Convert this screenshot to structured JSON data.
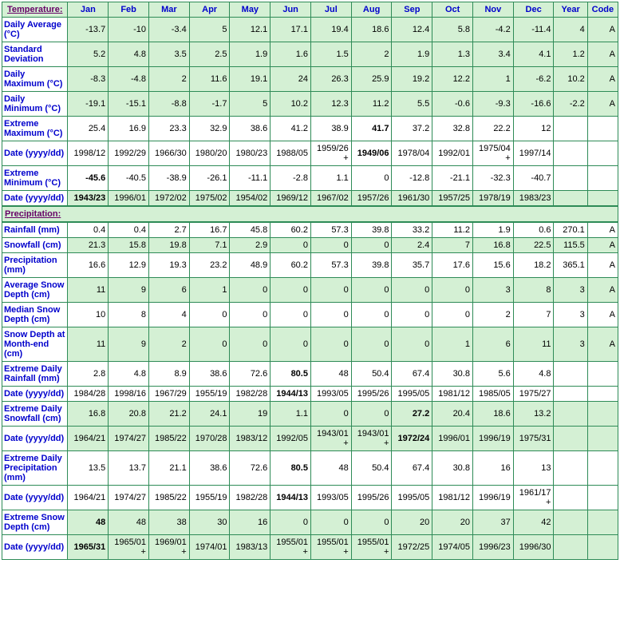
{
  "headers": [
    "Jan",
    "Feb",
    "Mar",
    "Apr",
    "May",
    "Jun",
    "Jul",
    "Aug",
    "Sep",
    "Oct",
    "Nov",
    "Dec",
    "Year",
    "Code"
  ],
  "sections": {
    "temperature": "Temperature:",
    "precipitation": "Precipitation:"
  },
  "rows": {
    "daily_avg": {
      "label": "Daily Average (°C)",
      "shaded": true,
      "bold": [],
      "v": [
        "-13.7",
        "-10",
        "-3.4",
        "5",
        "12.1",
        "17.1",
        "19.4",
        "18.6",
        "12.4",
        "5.8",
        "-4.2",
        "-11.4",
        "4",
        "A"
      ]
    },
    "std_dev": {
      "label": "Standard Deviation",
      "shaded": true,
      "bold": [],
      "v": [
        "5.2",
        "4.8",
        "3.5",
        "2.5",
        "1.9",
        "1.6",
        "1.5",
        "2",
        "1.9",
        "1.3",
        "3.4",
        "4.1",
        "1.2",
        "A"
      ]
    },
    "daily_max": {
      "label": "Daily Maximum (°C)",
      "shaded": true,
      "bold": [],
      "v": [
        "-8.3",
        "-4.8",
        "2",
        "11.6",
        "19.1",
        "24",
        "26.3",
        "25.9",
        "19.2",
        "12.2",
        "1",
        "-6.2",
        "10.2",
        "A"
      ]
    },
    "daily_min": {
      "label": "Daily Minimum (°C)",
      "shaded": true,
      "bold": [],
      "v": [
        "-19.1",
        "-15.1",
        "-8.8",
        "-1.7",
        "5",
        "10.2",
        "12.3",
        "11.2",
        "5.5",
        "-0.6",
        "-9.3",
        "-16.6",
        "-2.2",
        "A"
      ]
    },
    "ext_max": {
      "label": "Extreme Maximum (°C)",
      "shaded": false,
      "bold": [
        7
      ],
      "v": [
        "25.4",
        "16.9",
        "23.3",
        "32.9",
        "38.6",
        "41.2",
        "38.9",
        "41.7",
        "37.2",
        "32.8",
        "22.2",
        "12",
        "",
        ""
      ]
    },
    "ext_max_date": {
      "label": "Date (yyyy/dd)",
      "shaded": false,
      "bold": [
        7
      ],
      "v": [
        "1998/12",
        "1992/29",
        "1966/30",
        "1980/20",
        "1980/23",
        "1988/05",
        "1959/26+",
        "1949/06",
        "1978/04",
        "1992/01",
        "1975/04+",
        "1997/14",
        "",
        ""
      ]
    },
    "ext_min": {
      "label": "Extreme Minimum (°C)",
      "shaded": false,
      "bold": [
        0
      ],
      "v": [
        "-45.6",
        "-40.5",
        "-38.9",
        "-26.1",
        "-11.1",
        "-2.8",
        "1.1",
        "0",
        "-12.8",
        "-21.1",
        "-32.3",
        "-40.7",
        "",
        ""
      ]
    },
    "ext_min_date": {
      "label": "Date (yyyy/dd)",
      "shaded": true,
      "bold": [
        0
      ],
      "v": [
        "1943/23",
        "1996/01",
        "1972/02",
        "1975/02",
        "1954/02",
        "1969/12",
        "1967/02",
        "1957/26",
        "1961/30",
        "1957/25",
        "1978/19",
        "1983/23",
        "",
        ""
      ]
    },
    "rainfall": {
      "label": "Rainfall (mm)",
      "shaded": false,
      "bold": [],
      "v": [
        "0.4",
        "0.4",
        "2.7",
        "16.7",
        "45.8",
        "60.2",
        "57.3",
        "39.8",
        "33.2",
        "11.2",
        "1.9",
        "0.6",
        "270.1",
        "A"
      ]
    },
    "snowfall": {
      "label": "Snowfall (cm)",
      "shaded": true,
      "bold": [],
      "v": [
        "21.3",
        "15.8",
        "19.8",
        "7.1",
        "2.9",
        "0",
        "0",
        "0",
        "2.4",
        "7",
        "16.8",
        "22.5",
        "115.5",
        "A"
      ]
    },
    "precip": {
      "label": "Precipitation (mm)",
      "shaded": false,
      "bold": [],
      "v": [
        "16.6",
        "12.9",
        "19.3",
        "23.2",
        "48.9",
        "60.2",
        "57.3",
        "39.8",
        "35.7",
        "17.6",
        "15.6",
        "18.2",
        "365.1",
        "A"
      ]
    },
    "avg_snow": {
      "label": "Average Snow Depth (cm)",
      "shaded": true,
      "bold": [],
      "v": [
        "11",
        "9",
        "6",
        "1",
        "0",
        "0",
        "0",
        "0",
        "0",
        "0",
        "3",
        "8",
        "3",
        "A"
      ]
    },
    "med_snow": {
      "label": "Median Snow Depth (cm)",
      "shaded": false,
      "bold": [],
      "v": [
        "10",
        "8",
        "4",
        "0",
        "0",
        "0",
        "0",
        "0",
        "0",
        "0",
        "2",
        "7",
        "3",
        "A"
      ]
    },
    "snow_end": {
      "label": "Snow Depth at Month-end (cm)",
      "shaded": true,
      "bold": [],
      "v": [
        "11",
        "9",
        "2",
        "0",
        "0",
        "0",
        "0",
        "0",
        "0",
        "1",
        "6",
        "11",
        "3",
        "A"
      ]
    },
    "ext_rain": {
      "label": "Extreme Daily Rainfall (mm)",
      "shaded": false,
      "bold": [
        5
      ],
      "v": [
        "2.8",
        "4.8",
        "8.9",
        "38.6",
        "72.6",
        "80.5",
        "48",
        "50.4",
        "67.4",
        "30.8",
        "5.6",
        "4.8",
        "",
        ""
      ]
    },
    "ext_rain_d": {
      "label": "Date (yyyy/dd)",
      "shaded": false,
      "bold": [
        5
      ],
      "v": [
        "1984/28",
        "1998/16",
        "1967/29",
        "1955/19",
        "1982/28",
        "1944/13",
        "1993/05",
        "1995/26",
        "1995/05",
        "1981/12",
        "1985/05",
        "1975/27",
        "",
        ""
      ]
    },
    "ext_snow": {
      "label": "Extreme Daily Snowfall (cm)",
      "shaded": true,
      "bold": [
        8
      ],
      "v": [
        "16.8",
        "20.8",
        "21.2",
        "24.1",
        "19",
        "1.1",
        "0",
        "0",
        "27.2",
        "20.4",
        "18.6",
        "13.2",
        "",
        ""
      ]
    },
    "ext_snow_d": {
      "label": "Date (yyyy/dd)",
      "shaded": true,
      "bold": [
        8
      ],
      "v": [
        "1964/21",
        "1974/27",
        "1985/22",
        "1970/28",
        "1983/12",
        "1992/05",
        "1943/01+",
        "1943/01+",
        "1972/24",
        "1996/01",
        "1996/19",
        "1975/31",
        "",
        ""
      ]
    },
    "ext_prec": {
      "label": "Extreme Daily Precipitation (mm)",
      "shaded": false,
      "bold": [
        5
      ],
      "v": [
        "13.5",
        "13.7",
        "21.1",
        "38.6",
        "72.6",
        "80.5",
        "48",
        "50.4",
        "67.4",
        "30.8",
        "16",
        "13",
        "",
        ""
      ]
    },
    "ext_prec_d": {
      "label": "Date (yyyy/dd)",
      "shaded": false,
      "bold": [
        5
      ],
      "v": [
        "1964/21",
        "1974/27",
        "1985/22",
        "1955/19",
        "1982/28",
        "1944/13",
        "1993/05",
        "1995/26",
        "1995/05",
        "1981/12",
        "1996/19",
        "1961/17+",
        "",
        ""
      ]
    },
    "ext_depth": {
      "label": "Extreme Snow Depth (cm)",
      "shaded": true,
      "bold": [
        0
      ],
      "v": [
        "48",
        "48",
        "38",
        "30",
        "16",
        "0",
        "0",
        "0",
        "20",
        "20",
        "37",
        "42",
        "",
        ""
      ]
    },
    "ext_depth_d": {
      "label": "Date (yyyy/dd)",
      "shaded": true,
      "bold": [
        0
      ],
      "v": [
        "1965/31",
        "1965/01+",
        "1969/01+",
        "1974/01",
        "1983/13",
        "1955/01+",
        "1955/01+",
        "1955/01+",
        "1972/25",
        "1974/05",
        "1996/23",
        "1996/30",
        "",
        ""
      ]
    }
  },
  "colors": {
    "border": "#2e8b57",
    "header_bg": "#d4f0d4",
    "header_fg": "#0000cc",
    "section_fg": "#660066"
  }
}
